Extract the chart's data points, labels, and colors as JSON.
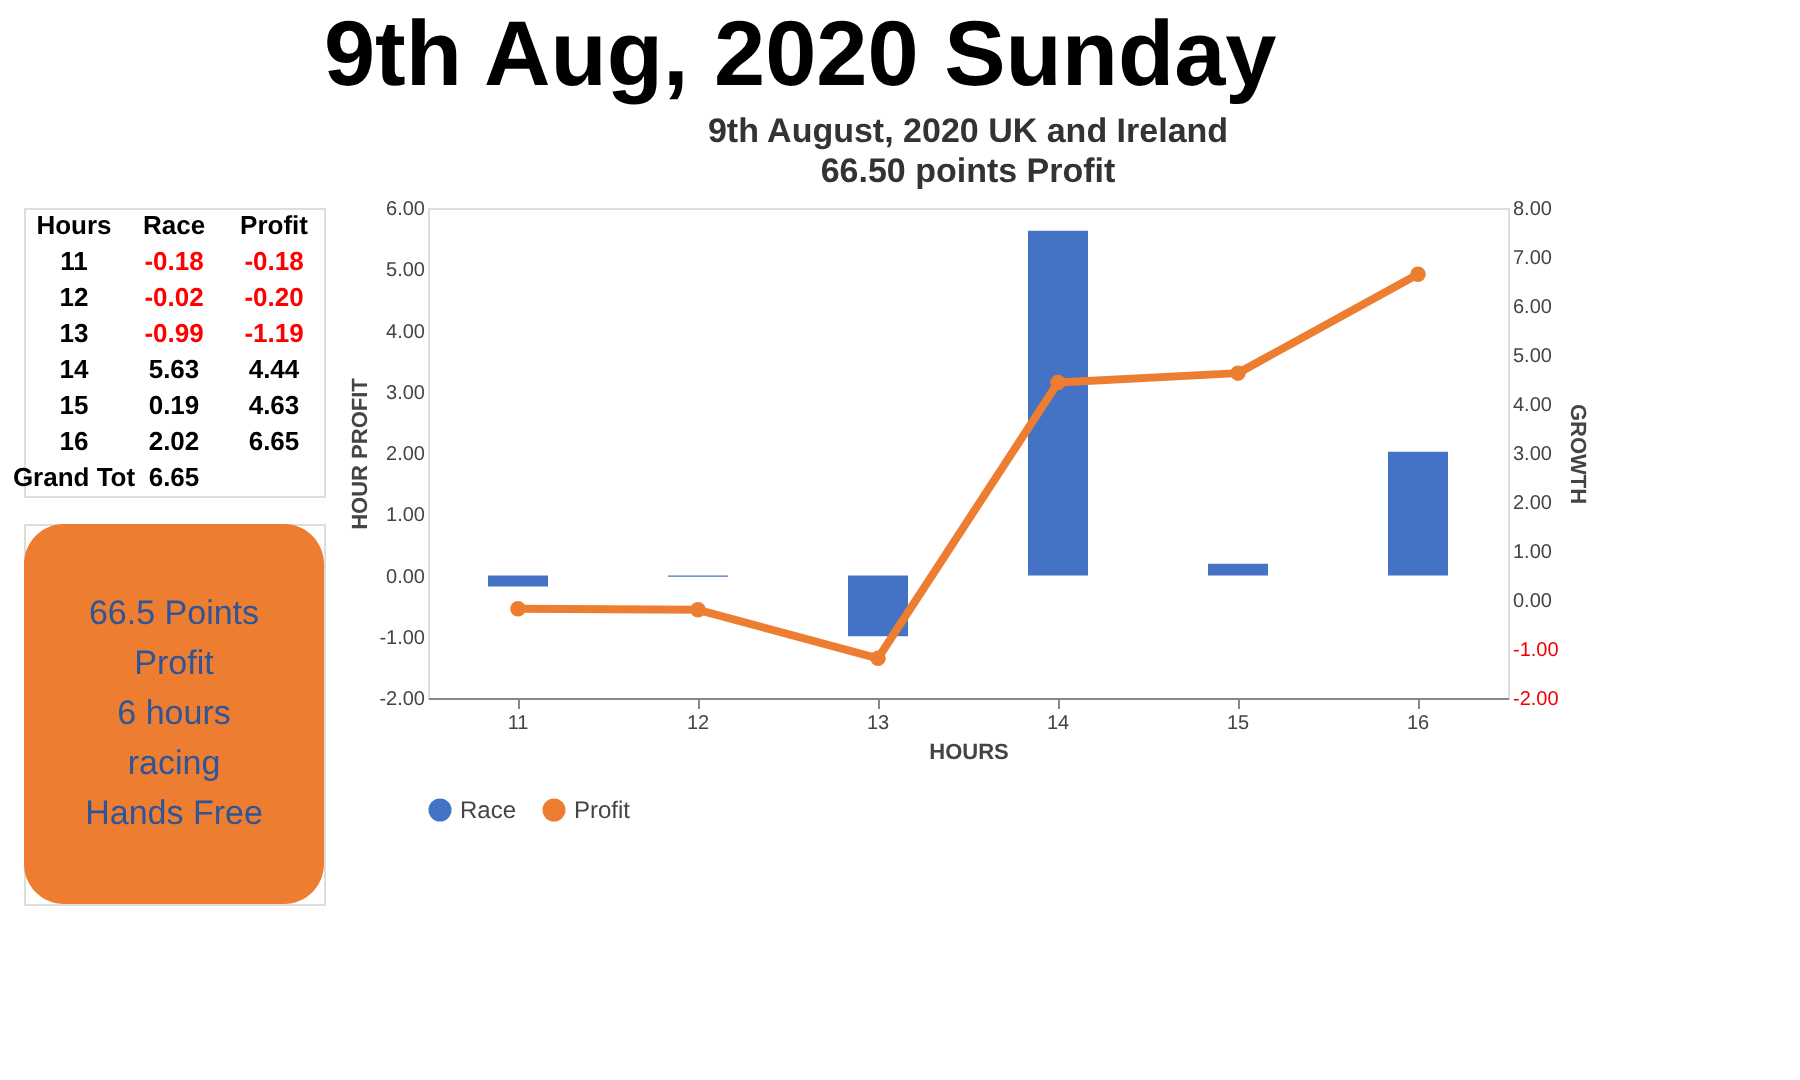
{
  "chart_data": {
    "type": "bar",
    "title": "9th Aug, 2020 Sunday",
    "subtitle": "9th August, 2020 UK and Ireland",
    "xlabel": "HOURS",
    "ylabel": "HOUR PROFIT",
    "y2label": "GROWTH",
    "categories": [
      "11",
      "12",
      "13",
      "14",
      "15",
      "16"
    ],
    "series": [
      {
        "name": "Race",
        "color": "#4472c4",
        "values": [
          -0.18,
          -0.02,
          -0.99,
          5.63,
          0.19,
          2.02
        ]
      },
      {
        "name": "Profit",
        "type": "line",
        "axis": "y2",
        "color": "#ed7d31",
        "values": [
          -0.18,
          -0.2,
          -1.19,
          4.44,
          4.63,
          6.65
        ]
      }
    ],
    "ylim": [
      -2,
      6
    ],
    "yticks": [
      {
        "value": -2,
        "label": "-2.00"
      },
      {
        "value": -1,
        "label": "-1.00"
      },
      {
        "value": 0,
        "label": "0.00"
      },
      {
        "value": 1,
        "label": "1.00"
      },
      {
        "value": 2,
        "label": "2.00"
      },
      {
        "value": 3,
        "label": "3.00"
      },
      {
        "value": 4,
        "label": "4.00"
      },
      {
        "value": 5,
        "label": "5.00"
      },
      {
        "value": 6,
        "label": "6.00"
      }
    ],
    "y2lim": [
      -2,
      8
    ],
    "y2ticks": [
      {
        "value": -2,
        "label": "-2.00"
      },
      {
        "value": -1,
        "label": "-1.00"
      },
      {
        "value": 0,
        "label": "0.00"
      },
      {
        "value": 1,
        "label": "1.00"
      },
      {
        "value": 2,
        "label": "2.00"
      },
      {
        "value": 3,
        "label": "3.00"
      },
      {
        "value": 4,
        "label": "4.00"
      },
      {
        "value": 5,
        "label": "5.00"
      },
      {
        "value": 6,
        "label": "6.00"
      },
      {
        "value": 7,
        "label": "7.00"
      },
      {
        "value": 8,
        "label": "8.00"
      }
    ],
    "marker": "circle",
    "legend": "bottom",
    "grid": false,
    "annotations": [
      "66.50 points Profit",
      "Hours",
      "Race",
      "Profit",
      "11",
      "-0.18",
      "-0.18",
      "12",
      "-0.02",
      "-0.20",
      "13",
      "-0.99",
      "-1.19",
      "14",
      "5.63",
      "4.44",
      "15",
      "0.19",
      "4.63",
      "16",
      "2.02",
      "6.65",
      "Grand Tot",
      "6.65",
      "66.5 Points\nProfit\n6 hours\nracing\nHands Free"
    ]
  }
}
